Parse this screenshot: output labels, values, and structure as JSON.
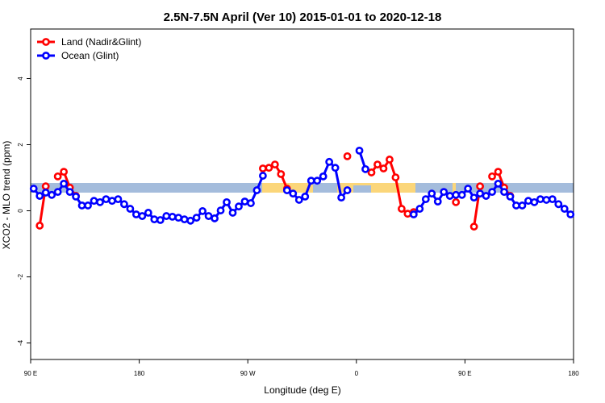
{
  "chart_data": {
    "type": "line",
    "title": "2.5N-7.5N April (Ver 10)   2015-01-01 to 2020-12-18",
    "xlabel": "Longitude (deg E)",
    "ylabel": "XCO2 - MLO trend (ppm)",
    "x": [
      92.5,
      97.5,
      102.5,
      107.5,
      112.5,
      117.5,
      122.5,
      127.5,
      132.5,
      137.5,
      142.5,
      147.5,
      152.5,
      157.5,
      162.5,
      167.5,
      172.5,
      177.5,
      182.5,
      187.5,
      192.5,
      197.5,
      202.5,
      207.5,
      212.5,
      217.5,
      222.5,
      227.5,
      232.5,
      237.5,
      242.5,
      247.5,
      252.5,
      257.5,
      262.5,
      267.5,
      272.5,
      277.5,
      282.5,
      287.5,
      292.5,
      297.5,
      302.5,
      307.5,
      312.5,
      317.5,
      322.5,
      327.5,
      332.5,
      337.5,
      342.5,
      347.5,
      352.5,
      357.5,
      362.5,
      367.5,
      372.5,
      377.5,
      382.5,
      387.5,
      392.5,
      397.5,
      402.5,
      407.5,
      412.5,
      417.5,
      422.5,
      427.5,
      432.5,
      437.5,
      442.5,
      447.5,
      452.5,
      457.5,
      462.5,
      467.5,
      472.5,
      477.5,
      482.5,
      487.5,
      492.5,
      497.5,
      502.5,
      507.5,
      512.5,
      517.5,
      522.5,
      527.5,
      532.5,
      537.5
    ],
    "series": [
      {
        "name": "Land (Nadir&Glint)",
        "color": "#ff0000",
        "values": [
          null,
          -0.45,
          0.74,
          null,
          1.04,
          1.18,
          0.7,
          0.45,
          null,
          null,
          null,
          null,
          null,
          null,
          null,
          null,
          null,
          null,
          null,
          null,
          null,
          null,
          null,
          null,
          null,
          null,
          null,
          null,
          null,
          null,
          null,
          null,
          null,
          null,
          null,
          null,
          null,
          null,
          1.28,
          1.3,
          1.4,
          1.11,
          0.67,
          null,
          null,
          null,
          null,
          null,
          null,
          null,
          null,
          null,
          1.65,
          null,
          null,
          null,
          1.16,
          1.4,
          1.28,
          1.55,
          1.01,
          0.06,
          -0.09,
          -0.04,
          null,
          null,
          null,
          null,
          null,
          null,
          0.26,
          null,
          null,
          -0.48,
          0.74,
          null,
          1.04,
          1.18,
          0.7,
          0.45,
          null,
          null,
          null,
          null,
          null,
          null,
          null,
          null,
          null,
          null
        ]
      },
      {
        "name": "Ocean (Glint)",
        "color": "#0000ff",
        "values": [
          0.67,
          0.45,
          0.55,
          0.48,
          0.57,
          0.82,
          0.57,
          0.43,
          0.16,
          0.16,
          0.3,
          0.26,
          0.35,
          0.3,
          0.35,
          0.2,
          0.06,
          -0.11,
          -0.16,
          -0.06,
          -0.26,
          -0.28,
          -0.16,
          -0.18,
          -0.21,
          -0.26,
          -0.3,
          -0.21,
          -0.01,
          -0.16,
          -0.23,
          0.01,
          0.26,
          -0.06,
          0.13,
          0.28,
          0.23,
          0.62,
          1.06,
          null,
          null,
          null,
          0.62,
          0.52,
          0.33,
          0.43,
          0.91,
          0.91,
          1.04,
          1.48,
          1.3,
          0.4,
          0.62,
          null,
          1.82,
          1.26,
          null,
          null,
          null,
          null,
          null,
          null,
          null,
          -0.11,
          0.06,
          0.35,
          0.52,
          0.28,
          0.57,
          0.45,
          0.48,
          0.48,
          0.67,
          0.4,
          0.52,
          0.45,
          0.57,
          0.82,
          0.57,
          0.43,
          0.16,
          0.16,
          0.3,
          0.26,
          0.35,
          0.33,
          0.35,
          0.2,
          0.06,
          -0.11
        ]
      }
    ],
    "xlim": [
      90,
      540
    ],
    "xticks": [
      {
        "value": 90,
        "label": "90 E"
      },
      {
        "value": 180,
        "label": "180"
      },
      {
        "value": 270,
        "label": "90 W"
      },
      {
        "value": 360,
        "label": "0"
      },
      {
        "value": 450,
        "label": "90 E"
      },
      {
        "value": 540,
        "label": "180"
      }
    ],
    "ylim": [
      -4.5,
      5.5
    ],
    "yticks": [
      -4,
      -2,
      0,
      2,
      4
    ],
    "legend": "top-left"
  }
}
